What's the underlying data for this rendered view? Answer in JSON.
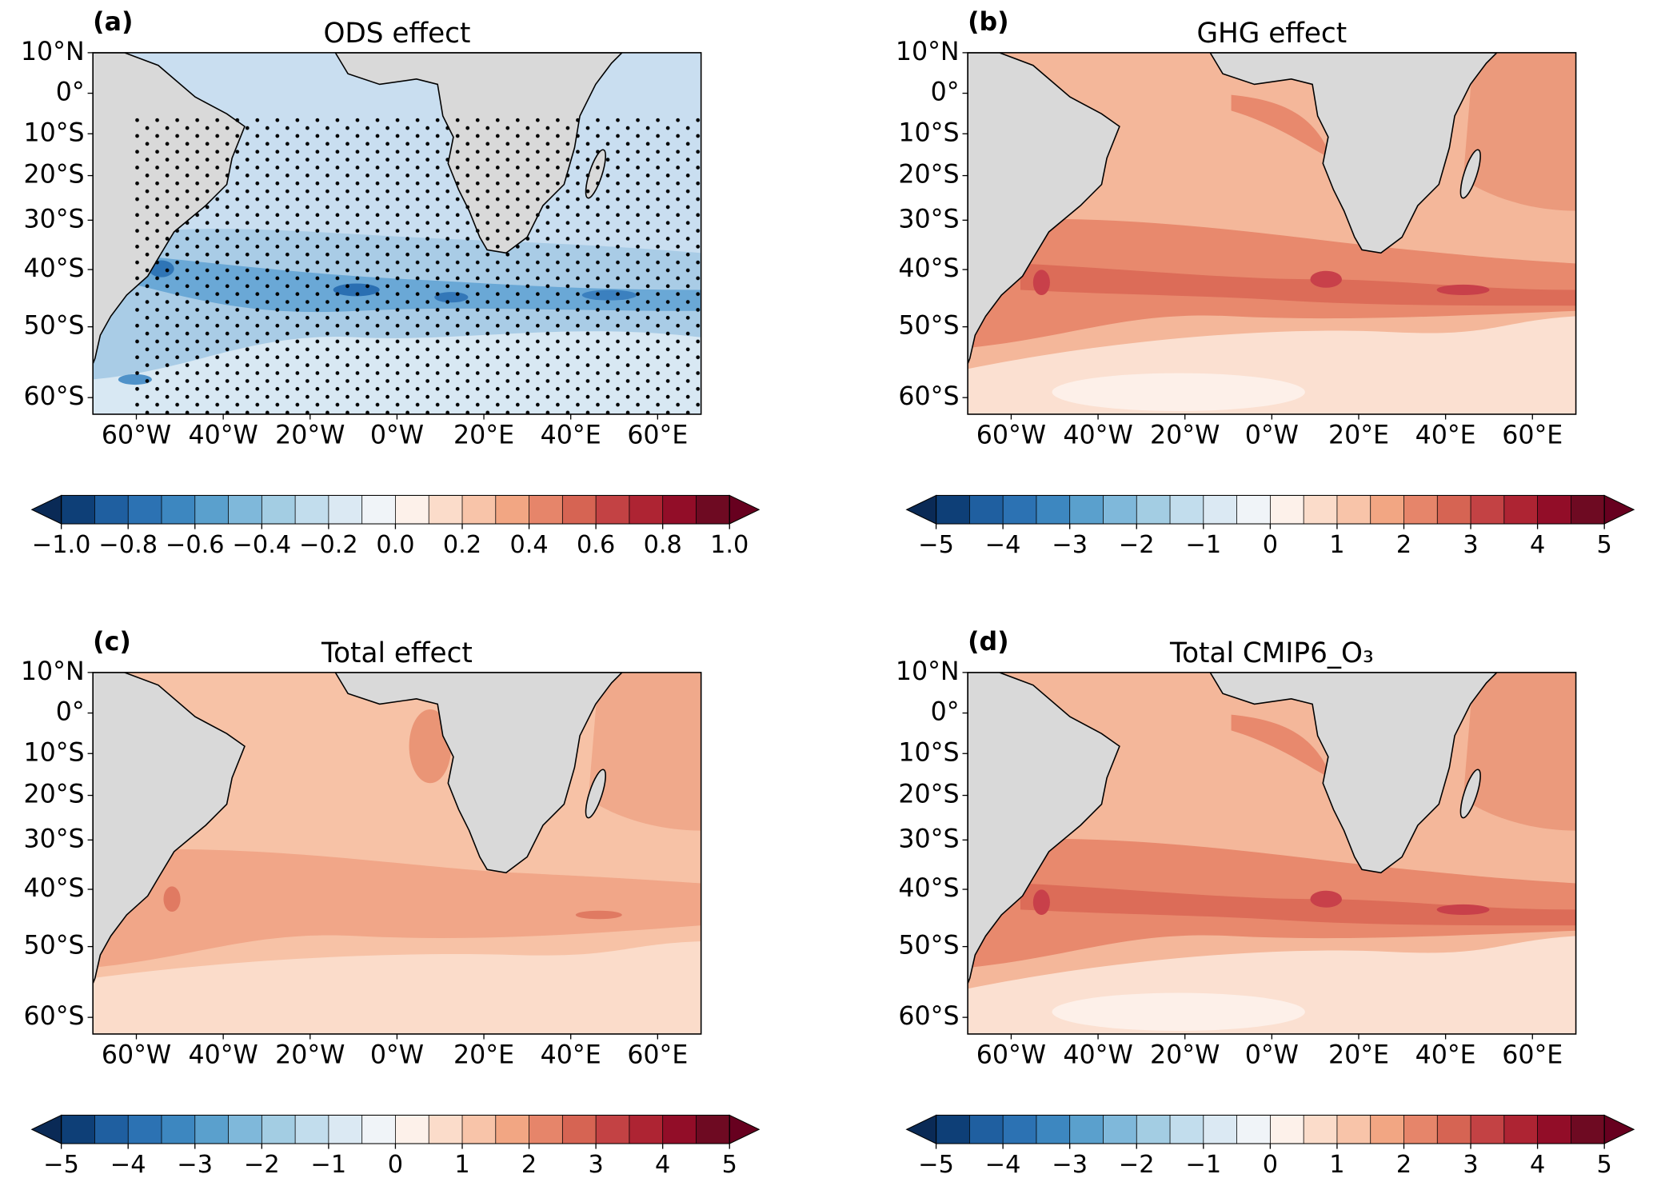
{
  "chart_data": [
    {
      "type": "map",
      "label": "(a)",
      "title": "ODS effect",
      "xlim": [
        -70,
        70
      ],
      "ylim": [
        -62,
        10
      ],
      "xticks": [
        {
          "value": -60,
          "label": "60°W"
        },
        {
          "value": -40,
          "label": "40°W"
        },
        {
          "value": -20,
          "label": "20°W"
        },
        {
          "value": 0,
          "label": "0°W"
        },
        {
          "value": 20,
          "label": "20°E"
        },
        {
          "value": 40,
          "label": "40°E"
        },
        {
          "value": 60,
          "label": "60°E"
        }
      ],
      "yticks": [
        {
          "value": 10,
          "label": "10°N"
        },
        {
          "value": 0,
          "label": "0°"
        },
        {
          "value": -10,
          "label": "10°S"
        },
        {
          "value": -20,
          "label": "20°S"
        },
        {
          "value": -30,
          "label": "30°S"
        },
        {
          "value": -40,
          "label": "40°S"
        },
        {
          "value": -50,
          "label": "50°S"
        },
        {
          "value": -60,
          "label": "60°S"
        }
      ],
      "stippling": true,
      "colorbar": {
        "lim": [
          -1,
          1
        ],
        "extend_colors": [
          "#0a2a56",
          "#67001f"
        ],
        "colors": [
          "#0e3f77",
          "#1f5fa0",
          "#2c72b3",
          "#3d87c0",
          "#5aa0cd",
          "#7fb8da",
          "#a3cde3",
          "#c2dded",
          "#dbe9f3",
          "#f0f4f8",
          "#fdf1ea",
          "#fbdcca",
          "#f8c4a9",
          "#f2a683",
          "#e6856a",
          "#d66453",
          "#c34244",
          "#ae2433",
          "#920d28",
          "#6e0a22"
        ],
        "ticks": [
          {
            "value": -1,
            "label": "−1.0"
          },
          {
            "value": -0.8,
            "label": "−0.8"
          },
          {
            "value": -0.6,
            "label": "−0.6"
          },
          {
            "value": -0.4,
            "label": "−0.4"
          },
          {
            "value": -0.2,
            "label": "−0.2"
          },
          {
            "value": 0,
            "label": "0.0"
          },
          0.2,
          0.4,
          0.6,
          0.8,
          {
            "value": 1,
            "label": "1.0"
          }
        ]
      }
    },
    {
      "type": "map",
      "label": "(b)",
      "title": "GHG effect",
      "xlim": [
        -70,
        70
      ],
      "ylim": [
        -62,
        10
      ],
      "xticks": [
        {
          "value": -60,
          "label": "60°W"
        },
        {
          "value": -40,
          "label": "40°W"
        },
        {
          "value": -20,
          "label": "20°W"
        },
        {
          "value": 0,
          "label": "0°W"
        },
        {
          "value": 20,
          "label": "20°E"
        },
        {
          "value": 40,
          "label": "40°E"
        },
        {
          "value": 60,
          "label": "60°E"
        }
      ],
      "yticks": [
        {
          "value": 10,
          "label": "10°N"
        },
        {
          "value": 0,
          "label": "0°"
        },
        {
          "value": -10,
          "label": "10°S"
        },
        {
          "value": -20,
          "label": "20°S"
        },
        {
          "value": -30,
          "label": "30°S"
        },
        {
          "value": -40,
          "label": "40°S"
        },
        {
          "value": -50,
          "label": "50°S"
        },
        {
          "value": -60,
          "label": "60°S"
        }
      ],
      "stippling": false,
      "colorbar": {
        "lim": [
          -5,
          5
        ],
        "extend_colors": [
          "#0a2a56",
          "#67001f"
        ],
        "colors": [
          "#0e3f77",
          "#1f5fa0",
          "#2c72b3",
          "#3d87c0",
          "#5aa0cd",
          "#7fb8da",
          "#a3cde3",
          "#c2dded",
          "#dbe9f3",
          "#f0f4f8",
          "#fdf1ea",
          "#fbdcca",
          "#f8c4a9",
          "#f2a683",
          "#e6856a",
          "#d66453",
          "#c34244",
          "#ae2433",
          "#920d28",
          "#6e0a22"
        ],
        "ticks": [
          {
            "value": -5,
            "label": "−5"
          },
          {
            "value": -4,
            "label": "−4"
          },
          {
            "value": -3,
            "label": "−3"
          },
          {
            "value": -2,
            "label": "−2"
          },
          {
            "value": -1,
            "label": "−1"
          },
          0,
          1,
          2,
          3,
          4,
          5
        ]
      }
    },
    {
      "type": "map",
      "label": "(c)",
      "title": "Total effect",
      "xlim": [
        -70,
        70
      ],
      "ylim": [
        -62,
        10
      ],
      "xticks": [
        {
          "value": -60,
          "label": "60°W"
        },
        {
          "value": -40,
          "label": "40°W"
        },
        {
          "value": -20,
          "label": "20°W"
        },
        {
          "value": 0,
          "label": "0°W"
        },
        {
          "value": 20,
          "label": "20°E"
        },
        {
          "value": 40,
          "label": "40°E"
        },
        {
          "value": 60,
          "label": "60°E"
        }
      ],
      "yticks": [
        {
          "value": 10,
          "label": "10°N"
        },
        {
          "value": 0,
          "label": "0°"
        },
        {
          "value": -10,
          "label": "10°S"
        },
        {
          "value": -20,
          "label": "20°S"
        },
        {
          "value": -30,
          "label": "30°S"
        },
        {
          "value": -40,
          "label": "40°S"
        },
        {
          "value": -50,
          "label": "50°S"
        },
        {
          "value": -60,
          "label": "60°S"
        }
      ],
      "stippling": false,
      "colorbar": {
        "lim": [
          -5,
          5
        ],
        "extend_colors": [
          "#0a2a56",
          "#67001f"
        ],
        "colors": [
          "#0e3f77",
          "#1f5fa0",
          "#2c72b3",
          "#3d87c0",
          "#5aa0cd",
          "#7fb8da",
          "#a3cde3",
          "#c2dded",
          "#dbe9f3",
          "#f0f4f8",
          "#fdf1ea",
          "#fbdcca",
          "#f8c4a9",
          "#f2a683",
          "#e6856a",
          "#d66453",
          "#c34244",
          "#ae2433",
          "#920d28",
          "#6e0a22"
        ],
        "ticks": [
          {
            "value": -5,
            "label": "−5"
          },
          {
            "value": -4,
            "label": "−4"
          },
          {
            "value": -3,
            "label": "−3"
          },
          {
            "value": -2,
            "label": "−2"
          },
          {
            "value": -1,
            "label": "−1"
          },
          0,
          1,
          2,
          3,
          4,
          5
        ]
      }
    },
    {
      "type": "map",
      "label": "(d)",
      "title": "Total CMIP6_O₃",
      "xlim": [
        -70,
        70
      ],
      "ylim": [
        -62,
        10
      ],
      "xticks": [
        {
          "value": -60,
          "label": "60°W"
        },
        {
          "value": -40,
          "label": "40°W"
        },
        {
          "value": -20,
          "label": "20°W"
        },
        {
          "value": 0,
          "label": "0°W"
        },
        {
          "value": 20,
          "label": "20°E"
        },
        {
          "value": 40,
          "label": "40°E"
        },
        {
          "value": 60,
          "label": "60°E"
        }
      ],
      "yticks": [
        {
          "value": 10,
          "label": "10°N"
        },
        {
          "value": 0,
          "label": "0°"
        },
        {
          "value": -10,
          "label": "10°S"
        },
        {
          "value": -20,
          "label": "20°S"
        },
        {
          "value": -30,
          "label": "30°S"
        },
        {
          "value": -40,
          "label": "40°S"
        },
        {
          "value": -50,
          "label": "50°S"
        },
        {
          "value": -60,
          "label": "60°S"
        }
      ],
      "stippling": false,
      "colorbar": {
        "lim": [
          -5,
          5
        ],
        "extend_colors": [
          "#0a2a56",
          "#67001f"
        ],
        "colors": [
          "#0e3f77",
          "#1f5fa0",
          "#2c72b3",
          "#3d87c0",
          "#5aa0cd",
          "#7fb8da",
          "#a3cde3",
          "#c2dded",
          "#dbe9f3",
          "#f0f4f8",
          "#fdf1ea",
          "#fbdcca",
          "#f8c4a9",
          "#f2a683",
          "#e6856a",
          "#d66453",
          "#c34244",
          "#ae2433",
          "#920d28",
          "#6e0a22"
        ],
        "ticks": [
          {
            "value": -5,
            "label": "−5"
          },
          {
            "value": -4,
            "label": "−4"
          },
          {
            "value": -3,
            "label": "−3"
          },
          {
            "value": -2,
            "label": "−2"
          },
          {
            "value": -1,
            "label": "−1"
          },
          0,
          1,
          2,
          3,
          4,
          5
        ]
      }
    }
  ]
}
